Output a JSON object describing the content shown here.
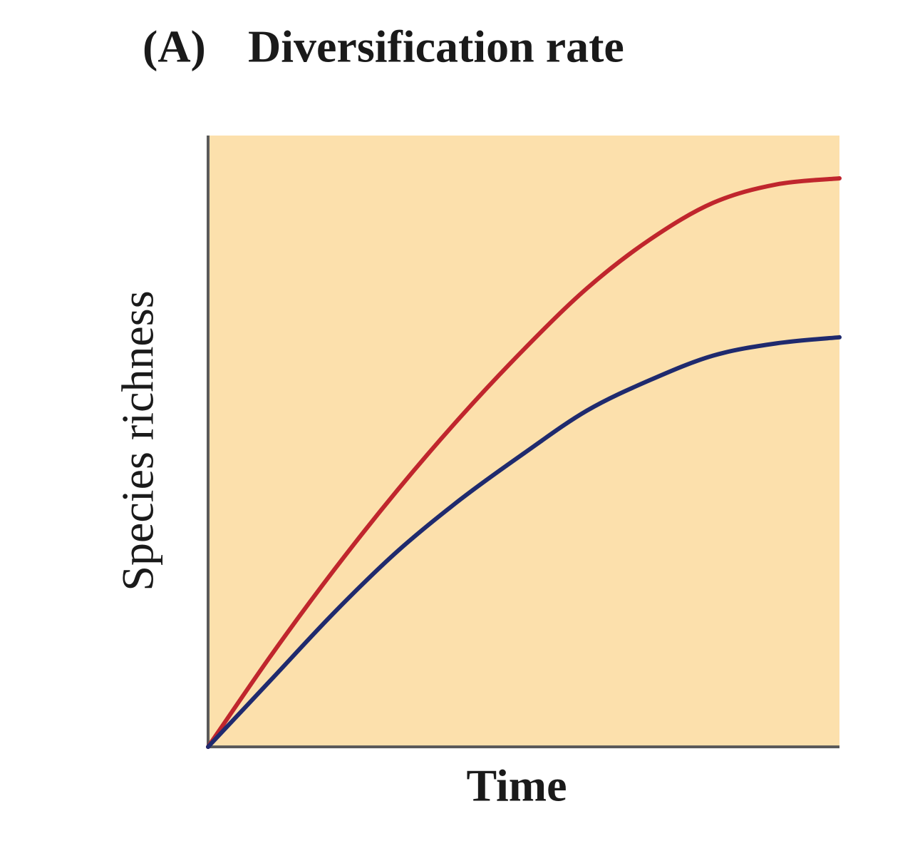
{
  "chart_data": {
    "type": "line",
    "panel_label": "(A)",
    "title": "Diversification rate",
    "x_label": "Time",
    "y_label": "Species richness",
    "background": "#fce0ac",
    "x": [
      0,
      1,
      2,
      3,
      4,
      5,
      6,
      7,
      8,
      9,
      10
    ],
    "xlim": [
      0,
      10
    ],
    "ylim": [
      0,
      100
    ],
    "series": [
      {
        "color": "#c0262d",
        "values": [
          0,
          15,
          29,
          42,
          54,
          65,
          75,
          83,
          89,
          92,
          93
        ]
      },
      {
        "color": "#1f2a6e",
        "values": [
          0,
          11,
          22,
          32,
          40.5,
          48,
          55,
          60,
          64,
          66,
          67
        ]
      }
    ]
  }
}
